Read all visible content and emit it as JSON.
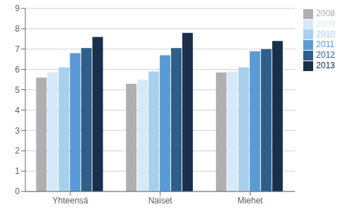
{
  "chart_data": {
    "type": "bar",
    "categories": [
      "Yhteensä",
      "Naiset",
      "Miehet"
    ],
    "series": [
      {
        "name": "2008",
        "color": "#b0b0b0",
        "values": [
          5.6,
          5.3,
          5.85
        ]
      },
      {
        "name": "2009",
        "color": "#d6e9f8",
        "values": [
          5.85,
          5.5,
          5.9
        ]
      },
      {
        "name": "2010",
        "color": "#a8d0ed",
        "values": [
          6.1,
          5.9,
          6.1
        ]
      },
      {
        "name": "2011",
        "color": "#5b9bd5",
        "values": [
          6.8,
          6.7,
          6.9
        ]
      },
      {
        "name": "2012",
        "color": "#2e5f8a",
        "values": [
          7.05,
          7.05,
          7.0
        ]
      },
      {
        "name": "2013",
        "color": "#1a2f4a",
        "values": [
          7.6,
          7.8,
          7.4
        ]
      }
    ],
    "ylim": [
      0,
      9
    ],
    "yticks": [
      0,
      1,
      2,
      3,
      4,
      5,
      6,
      7,
      8,
      9
    ],
    "grid": true,
    "legend": "right"
  }
}
